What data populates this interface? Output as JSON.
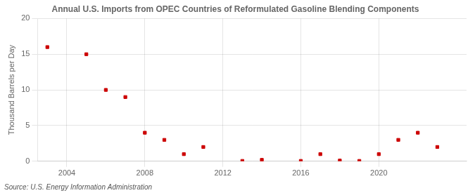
{
  "chart_data": {
    "type": "scatter",
    "title": "Annual U.S. Imports from OPEC Countries of Reformulated Gasoline Blending Components",
    "ylabel": "Thousand Barrels per Day",
    "source": "Source: U.S. Energy Information Administration",
    "x": [
      2003,
      2005,
      2006,
      2007,
      2008,
      2009,
      2010,
      2011,
      2013,
      2014,
      2016,
      2017,
      2018,
      2019,
      2020,
      2021,
      2022,
      2023
    ],
    "values": [
      16.0,
      15.0,
      10.0,
      9.0,
      4.0,
      3.0,
      1.0,
      2.0,
      0.05,
      0.2,
      0.05,
      1.0,
      0.1,
      0.05,
      1.0,
      3.0,
      4.0,
      2.0
    ],
    "color": "#cc0000",
    "marker": "square",
    "xlim": [
      2002.5,
      2024.5
    ],
    "xticks": [
      2004,
      2008,
      2012,
      2016,
      2020
    ],
    "ylim": [
      0,
      20
    ],
    "yticks": [
      0,
      5,
      10,
      15,
      20
    ],
    "grid": true
  }
}
